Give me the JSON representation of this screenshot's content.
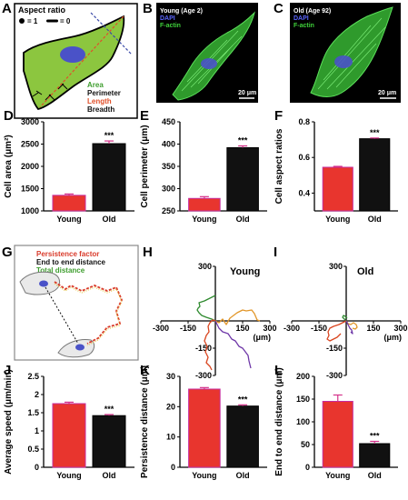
{
  "colors": {
    "young": "#e8352e",
    "old": "#111111",
    "error": "#d4328a",
    "fiber_green": "#3ecf3a",
    "nucleus_blue": "#4a52c8",
    "cell_fill": "#8cc63f"
  },
  "panels": {
    "A": {
      "letter": "A",
      "title": "Aspect ratio",
      "ratio_one": "= 1",
      "ratio_zero": "= 0",
      "legend": [
        {
          "text": "Area",
          "color": "#3f9e2f"
        },
        {
          "text": "Perimeter",
          "color": "#111111"
        },
        {
          "text": "Length",
          "color": "#e0502a"
        },
        {
          "text": "Breadth",
          "color": "#111111"
        }
      ]
    },
    "B": {
      "letter": "B",
      "title": "Young (Age 2)",
      "dapi": "DAPI",
      "factin": "F-actin",
      "scale": "20 μm"
    },
    "C": {
      "letter": "C",
      "title": "Old (Age 92)",
      "dapi": "DAPI",
      "factin": "F-actin",
      "scale": "20 μm"
    },
    "G": {
      "letter": "G",
      "legend": [
        {
          "text": "Persistence factor",
          "color": "#d93a2a"
        },
        {
          "text": "End to end distance",
          "color": "#111111"
        },
        {
          "text": "Total distance",
          "color": "#3f9e2f"
        }
      ]
    },
    "H": {
      "letter": "H",
      "label": "Young",
      "axis_ticks": [
        "-300",
        "-150",
        "150",
        "300",
        "300",
        "-150",
        "-300"
      ],
      "unit": "(μm)"
    },
    "I": {
      "letter": "I",
      "label": "Old",
      "axis_ticks": [
        "-300",
        "-150",
        "150",
        "300",
        "300",
        "-150",
        "-300"
      ],
      "unit": "(μm)"
    }
  },
  "chart_data": [
    {
      "id": "D",
      "letter": "D",
      "type": "bar",
      "categories": [
        "Young",
        "Old"
      ],
      "values": [
        1350,
        2510
      ],
      "errors": [
        30,
        60
      ],
      "ylabel": "Cell area (μm²)",
      "ylim": [
        1000,
        3000
      ],
      "yticks": [
        1000,
        1500,
        2000,
        2500,
        3000
      ],
      "significance": "***"
    },
    {
      "id": "E",
      "letter": "E",
      "type": "bar",
      "categories": [
        "Young",
        "Old"
      ],
      "values": [
        278,
        392
      ],
      "errors": [
        4,
        4
      ],
      "ylabel": "Cell perimeter (μm)",
      "ylim": [
        250,
        450
      ],
      "yticks": [
        250,
        300,
        350,
        400,
        450
      ],
      "significance": "***"
    },
    {
      "id": "F",
      "letter": "F",
      "type": "bar",
      "categories": [
        "Young",
        "Old"
      ],
      "values": [
        0.545,
        0.705
      ],
      "errors": [
        0.005,
        0.004
      ],
      "ylabel": "Cell aspect ratios",
      "ylim": [
        0.3,
        0.8
      ],
      "yticks": [
        0.4,
        0.6,
        0.8
      ],
      "significance": "***"
    },
    {
      "id": "J",
      "letter": "J",
      "type": "bar",
      "categories": [
        "Young",
        "Old"
      ],
      "values": [
        1.75,
        1.42
      ],
      "errors": [
        0.04,
        0.03
      ],
      "ylabel": "Average speed (μm/min)",
      "ylim": [
        0.0,
        2.5
      ],
      "yticks": [
        0.0,
        0.5,
        1.0,
        1.5,
        2.0,
        2.5
      ],
      "significance": "***"
    },
    {
      "id": "K",
      "letter": "K",
      "type": "bar",
      "categories": [
        "Young",
        "Old"
      ],
      "values": [
        25.8,
        20.2
      ],
      "errors": [
        0.5,
        0.4
      ],
      "ylabel": "Persistence distance (μm)",
      "ylim": [
        0,
        30
      ],
      "yticks": [
        0,
        10,
        20,
        30
      ],
      "significance": "***"
    },
    {
      "id": "L",
      "letter": "L",
      "type": "bar",
      "categories": [
        "Young",
        "Old"
      ],
      "values": [
        145,
        52
      ],
      "errors": [
        14,
        5
      ],
      "ylabel": "End to end distance (μm)",
      "ylim": [
        0,
        200
      ],
      "yticks": [
        0,
        50,
        100,
        150,
        200
      ],
      "significance": "***"
    },
    {
      "id": "H",
      "type": "line",
      "xlim": [
        -300,
        300
      ],
      "ylim": [
        -300,
        300
      ],
      "series": [
        {
          "color": "#2f8a2f",
          "x": [
            0,
            -20,
            -50,
            -75,
            -90,
            -100,
            -95,
            -85,
            -90,
            -60,
            -30,
            -10,
            0
          ],
          "y": [
            0,
            10,
            20,
            30,
            45,
            60,
            70,
            80,
            100,
            110,
            125,
            135,
            140
          ]
        },
        {
          "color": "#e2972a",
          "x": [
            0,
            20,
            40,
            60,
            80,
            100,
            120,
            150,
            170,
            200,
            215,
            230,
            245
          ],
          "y": [
            0,
            -10,
            10,
            -20,
            15,
            30,
            45,
            60,
            55,
            60,
            40,
            5,
            0
          ]
        },
        {
          "color": "#d9451f",
          "x": [
            0,
            -15,
            -30,
            -40,
            -35,
            -50,
            -60,
            -45,
            -55,
            -40,
            -50,
            -30,
            -20
          ],
          "y": [
            0,
            5,
            -10,
            -30,
            -60,
            -80,
            -110,
            -140,
            -170,
            -200,
            -230,
            -250,
            -270
          ]
        },
        {
          "color": "#6f38a8",
          "x": [
            0,
            20,
            40,
            70,
            90,
            110,
            130,
            150,
            165,
            180,
            185,
            190,
            195
          ],
          "y": [
            0,
            -40,
            -60,
            -70,
            -100,
            -110,
            -140,
            -150,
            -170,
            -190,
            -220,
            -240,
            -260
          ]
        }
      ]
    },
    {
      "id": "I",
      "type": "line",
      "xlim": [
        -300,
        300
      ],
      "ylim": [
        -300,
        300
      ],
      "series": [
        {
          "color": "#2f8a2f",
          "x": [
            0,
            -10,
            -20,
            -15,
            -5,
            5
          ],
          "y": [
            0,
            10,
            20,
            30,
            25,
            15
          ]
        },
        {
          "color": "#e2972a",
          "x": [
            0,
            10,
            25,
            40,
            55,
            60,
            50,
            35
          ],
          "y": [
            0,
            -15,
            -20,
            -10,
            -20,
            -35,
            -45,
            -40
          ]
        },
        {
          "color": "#d9451f",
          "x": [
            0,
            -20,
            -40,
            -70,
            -90,
            -100,
            -95,
            -105,
            -90,
            -70,
            -50,
            -30
          ],
          "y": [
            0,
            -10,
            -20,
            -30,
            -40,
            -60,
            -80,
            -100,
            -110,
            -100,
            -90,
            -70
          ]
        },
        {
          "color": "#6f38a8",
          "x": [
            0,
            10,
            20,
            30,
            35,
            25
          ],
          "y": [
            0,
            -20,
            -40,
            -50,
            -70,
            -60
          ]
        }
      ]
    }
  ]
}
